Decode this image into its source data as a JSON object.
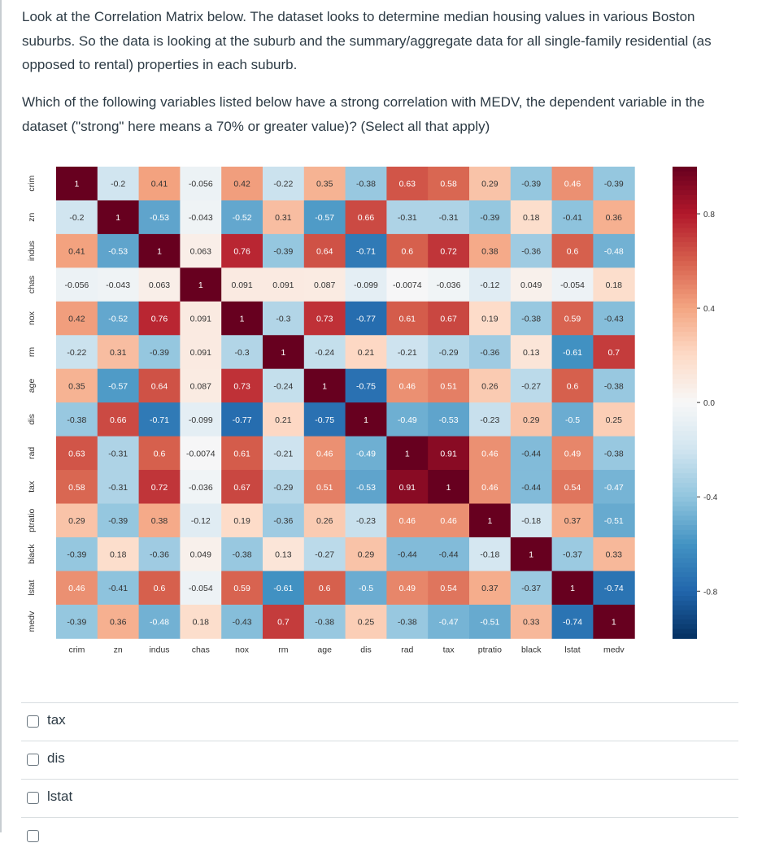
{
  "question": {
    "paragraph1": "Look at the Correlation Matrix below. The dataset looks to determine median housing values in various Boston suburbs. So the data is looking at the suburb and the summary/aggregate data for all single-family residential (as opposed to rental) properties in each suburb.",
    "paragraph2": "Which of the following variables listed below have a strong correlation with MEDV, the dependent variable in the dataset (\"strong\" here means a 70% or greater value)? (Select all that apply)"
  },
  "options": [
    {
      "label": "tax",
      "checked": false
    },
    {
      "label": "dis",
      "checked": false
    },
    {
      "label": "lstat",
      "checked": false
    }
  ],
  "chart_data": {
    "type": "heatmap",
    "colormap": "RdBu_r",
    "vmin": -1,
    "vmax": 1,
    "colorbar_ticks": [
      "0.8",
      "0.4",
      "0.0",
      "-0.4",
      "-0.8"
    ],
    "labels": [
      "crim",
      "zn",
      "indus",
      "chas",
      "nox",
      "rm",
      "age",
      "dis",
      "rad",
      "tax",
      "ptratio",
      "black",
      "lstat",
      "medv"
    ],
    "matrix": [
      [
        1,
        -0.2,
        0.41,
        -0.056,
        0.42,
        -0.22,
        0.35,
        -0.38,
        0.63,
        0.58,
        0.29,
        -0.39,
        0.46,
        -0.39
      ],
      [
        -0.2,
        1,
        -0.53,
        -0.043,
        -0.52,
        0.31,
        -0.57,
        0.66,
        -0.31,
        -0.31,
        -0.39,
        0.18,
        -0.41,
        0.36
      ],
      [
        0.41,
        -0.53,
        1,
        0.063,
        0.76,
        -0.39,
        0.64,
        -0.71,
        0.6,
        0.72,
        0.38,
        -0.36,
        0.6,
        -0.48
      ],
      [
        -0.056,
        -0.043,
        0.063,
        1,
        0.091,
        0.091,
        0.087,
        -0.099,
        -0.0074,
        -0.036,
        -0.12,
        0.049,
        -0.054,
        0.18
      ],
      [
        0.42,
        -0.52,
        0.76,
        0.091,
        1,
        -0.3,
        0.73,
        -0.77,
        0.61,
        0.67,
        0.19,
        -0.38,
        0.59,
        -0.43
      ],
      [
        -0.22,
        0.31,
        -0.39,
        0.091,
        -0.3,
        1,
        -0.24,
        0.21,
        -0.21,
        -0.29,
        -0.36,
        0.13,
        -0.61,
        0.7
      ],
      [
        0.35,
        -0.57,
        0.64,
        0.087,
        0.73,
        -0.24,
        1,
        -0.75,
        0.46,
        0.51,
        0.26,
        -0.27,
        0.6,
        -0.38
      ],
      [
        -0.38,
        0.66,
        -0.71,
        -0.099,
        -0.77,
        0.21,
        -0.75,
        1,
        -0.49,
        -0.53,
        -0.23,
        0.29,
        -0.5,
        0.25
      ],
      [
        0.63,
        -0.31,
        0.6,
        -0.0074,
        0.61,
        -0.21,
        0.46,
        -0.49,
        1,
        0.91,
        0.46,
        -0.44,
        0.49,
        -0.38
      ],
      [
        0.58,
        -0.31,
        0.72,
        -0.036,
        0.67,
        -0.29,
        0.51,
        -0.53,
        0.91,
        1,
        0.46,
        -0.44,
        0.54,
        -0.47
      ],
      [
        0.29,
        -0.39,
        0.38,
        -0.12,
        0.19,
        -0.36,
        0.26,
        -0.23,
        0.46,
        0.46,
        1,
        -0.18,
        0.37,
        -0.51
      ],
      [
        -0.39,
        0.18,
        -0.36,
        0.049,
        -0.38,
        0.13,
        -0.27,
        0.29,
        -0.44,
        -0.44,
        -0.18,
        1,
        -0.37,
        0.33
      ],
      [
        0.46,
        -0.41,
        0.6,
        -0.054,
        0.59,
        -0.61,
        0.6,
        -0.5,
        0.49,
        0.54,
        0.37,
        -0.37,
        1,
        -0.74
      ],
      [
        -0.39,
        0.36,
        -0.48,
        0.18,
        -0.43,
        0.7,
        -0.38,
        0.25,
        -0.38,
        -0.47,
        -0.51,
        0.33,
        -0.74,
        1
      ]
    ]
  }
}
